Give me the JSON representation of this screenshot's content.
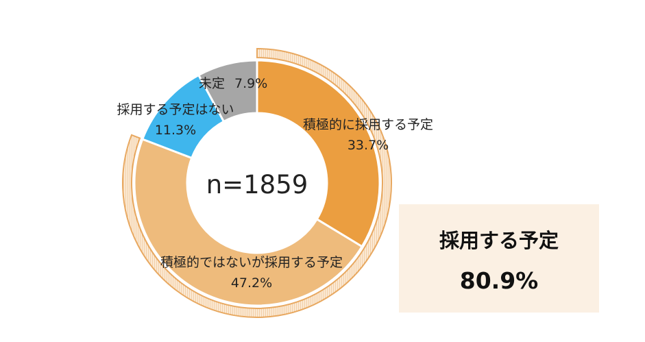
{
  "chart_data": {
    "type": "pie",
    "subtype": "donut",
    "total_label": "n=1859",
    "slices": [
      {
        "label": "積極的に採用する予定",
        "value": 33.7,
        "display": "33.7%",
        "color": "#eb9e40"
      },
      {
        "label": "積極的ではないが採用する予定",
        "value": 47.2,
        "display": "47.2%",
        "color": "#eebb7c"
      },
      {
        "label": "採用する予定はない",
        "value": 11.3,
        "display": "11.3%",
        "color": "#3fb6ed"
      },
      {
        "label": "未定",
        "value": 7.9,
        "display": "7.9%",
        "color": "#a6a6a6"
      }
    ],
    "highlight_ring": {
      "covers": [
        "積極的に採用する予定",
        "積極的ではないが採用する予定"
      ],
      "color": "#e8a860"
    }
  },
  "summary": {
    "label": "採用する予定",
    "value": "80.9%"
  }
}
